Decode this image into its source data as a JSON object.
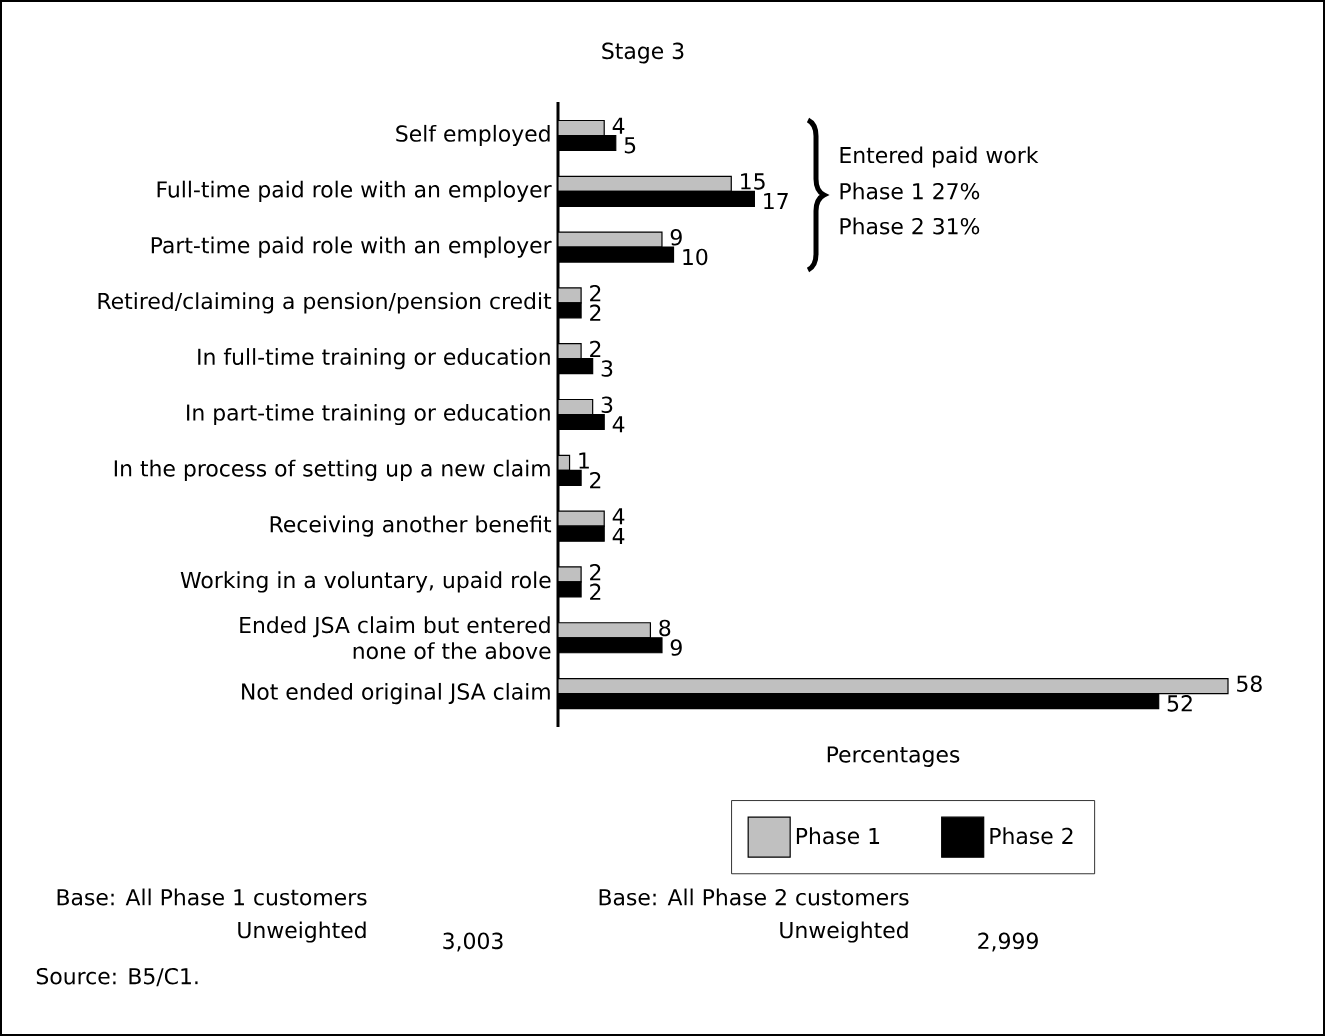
{
  "chart_data": {
    "type": "bar",
    "orientation": "horizontal",
    "title": "Stage 3",
    "xlabel": "Percentages",
    "categories": [
      "Self employed",
      "Full-time paid role with an employer",
      "Part-time paid role with an employer",
      "Retired/claiming a pension/pension credit",
      "In full-time training or education",
      "In part-time training or education",
      "In the process of setting up a new claim",
      "Receiving another benefit",
      "Working in a voluntary, upaid role",
      "Ended JSA claim but entered none of the above",
      "Not ended original JSA claim"
    ],
    "series": [
      {
        "name": "Phase 1",
        "color": "#c0c0c0",
        "values": [
          4,
          15,
          9,
          2,
          2,
          3,
          1,
          4,
          2,
          8,
          58
        ]
      },
      {
        "name": "Phase 2",
        "color": "#000000",
        "values": [
          5,
          17,
          10,
          2,
          3,
          4,
          2,
          4,
          2,
          9,
          52
        ]
      }
    ],
    "tick_labels": "y",
    "data_labels": true,
    "legend": "bottom",
    "annotations": [
      "Entered paid work",
      "Phase 1 27%",
      "Phase 2 31%",
      "Base: All Phase 1 customers",
      "Unweighted",
      "3,003",
      "Base: All Phase 2 customers",
      "Unweighted",
      "2,999",
      "Source: B5/C1."
    ]
  }
}
